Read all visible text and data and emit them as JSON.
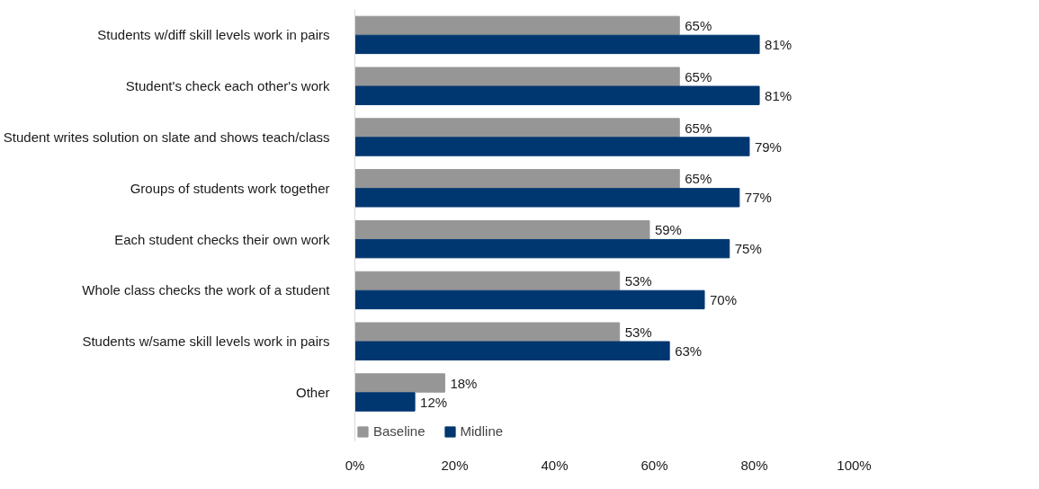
{
  "chart_data": {
    "type": "bar",
    "orientation": "horizontal",
    "categories": [
      "Students w/diff skill levels work in pairs",
      "Student's check each other's work",
      "Student writes solution on slate and shows teach/class",
      "Groups of students work together",
      "Each student checks their own work",
      "Whole class checks the work of a student",
      "Students w/same skill levels work in pairs",
      "Other"
    ],
    "series": [
      {
        "name": "Baseline",
        "color": "#969696",
        "values": [
          65,
          65,
          65,
          65,
          59,
          53,
          53,
          18
        ],
        "value_labels": [
          "65%",
          "65%",
          "65%",
          "65%",
          "59%",
          "53%",
          "53%",
          "18%"
        ]
      },
      {
        "name": "Midline",
        "color": "#003770",
        "values": [
          81,
          81,
          79,
          77,
          75,
          70,
          63,
          12
        ],
        "value_labels": [
          "81%",
          "81%",
          "79%",
          "77%",
          "75%",
          "70%",
          "63%",
          "12%"
        ]
      }
    ],
    "xlim": [
      0,
      100
    ],
    "xticks": [
      {
        "value": 0,
        "label": "0%"
      },
      {
        "value": 20,
        "label": "20%"
      },
      {
        "value": 40,
        "label": "40%"
      },
      {
        "value": 60,
        "label": "60%"
      },
      {
        "value": 80,
        "label": "80%"
      },
      {
        "value": 100,
        "label": "100%"
      }
    ],
    "grid": false,
    "legend": "bottom left"
  }
}
